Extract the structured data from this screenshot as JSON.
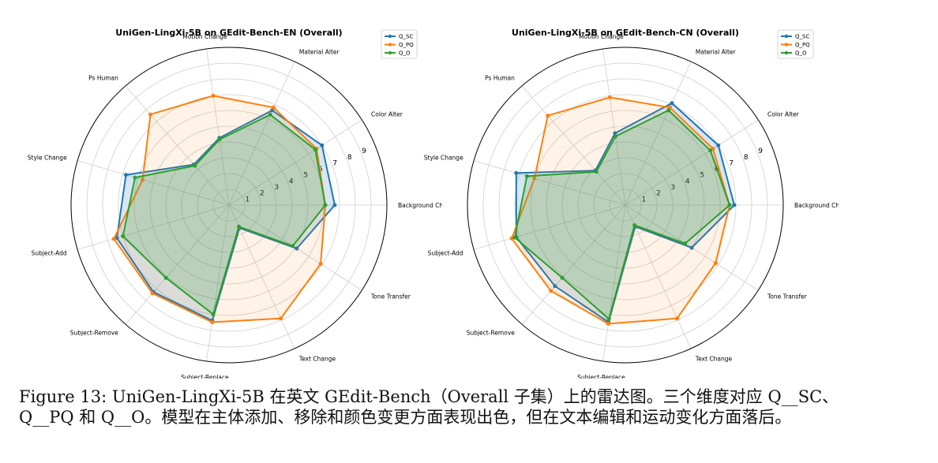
{
  "chart_data": [
    {
      "type": "radar",
      "title": "UniGen-LingXi-5B on GEdit-Bench-EN (Overall)",
      "categories": [
        "Background Change",
        "Color Alter",
        "Material Alter",
        "Motion Change",
        "Ps Human",
        "Style Change",
        "Subject-Add",
        "Subject-Remove",
        "Subject-Replace",
        "Text Change",
        "Tone Transfer"
      ],
      "rlim": [
        0,
        10
      ],
      "rticks": [
        1,
        2,
        3,
        4,
        5,
        6,
        7,
        8,
        9
      ],
      "grid": true,
      "legend": "top-right",
      "series": [
        {
          "name": "Q_SC",
          "color": "#1f77b4",
          "values": [
            6.7,
            7.0,
            6.6,
            4.3,
            3.4,
            6.8,
            7.4,
            7.3,
            7.4,
            1.6,
            5.1
          ]
        },
        {
          "name": "Q_PQ",
          "color": "#ff7f0e",
          "values": [
            6.1,
            6.6,
            6.8,
            7.0,
            7.6,
            5.7,
            7.6,
            7.4,
            7.5,
            7.9,
            6.9
          ]
        },
        {
          "name": "Q_O",
          "color": "#2ca02c",
          "values": [
            6.1,
            6.5,
            6.3,
            4.2,
            3.3,
            6.2,
            7.0,
            6.1,
            7.0,
            1.5,
            4.8
          ]
        }
      ]
    },
    {
      "type": "radar",
      "title": "UniGen-LingXi-5B on GEdit-Bench-CN (Overall)",
      "categories": [
        "Background Change",
        "Color Alter",
        "Material Alter",
        "Motion Change",
        "Ps Human",
        "Style Change",
        "Subject-Add",
        "Subject-Remove",
        "Subject-Replace",
        "Text Change",
        "Tone Transfer"
      ],
      "rlim": [
        0,
        10
      ],
      "rticks": [
        1,
        2,
        3,
        4,
        5,
        6,
        7,
        8,
        9
      ],
      "grid": true,
      "legend": "top-right",
      "series": [
        {
          "name": "Q_SC",
          "color": "#1f77b4",
          "values": [
            6.9,
            7.0,
            7.1,
            4.6,
            2.9,
            7.2,
            7.2,
            6.8,
            7.5,
            1.5,
            5.0
          ]
        },
        {
          "name": "Q_PQ",
          "color": "#ff7f0e",
          "values": [
            6.6,
            6.6,
            6.8,
            6.9,
            7.5,
            6.0,
            7.5,
            7.2,
            7.6,
            7.9,
            6.8
          ]
        },
        {
          "name": "Q_O",
          "color": "#2ca02c",
          "values": [
            6.6,
            6.4,
            6.6,
            4.4,
            2.8,
            6.5,
            7.3,
            6.1,
            7.3,
            1.4,
            4.5
          ]
        }
      ]
    }
  ],
  "caption": "Figure 13: UniGen-LingXi-5B 在英文 GEdit-Bench（Overall 子集）上的雷达图。三个维度对应 Q__SC、Q__PQ 和 Q__O。模型在主体添加、移除和颜色变更方面表现出色，但在文本编辑和运动变化方面落后。"
}
